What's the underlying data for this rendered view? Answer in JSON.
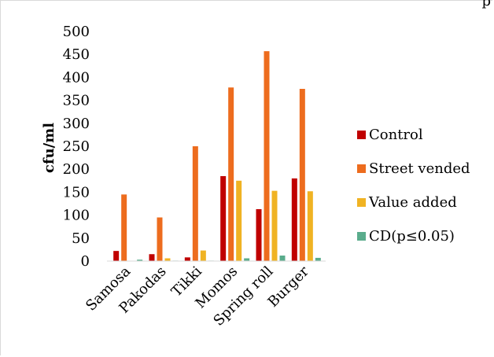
{
  "header_fragment": "p",
  "chart_data": {
    "type": "bar",
    "title": "",
    "xlabel": "",
    "ylabel": "cfu/ml",
    "ylim": [
      0,
      500
    ],
    "yticks": [
      0,
      50,
      100,
      150,
      200,
      250,
      300,
      350,
      400,
      450,
      500
    ],
    "grid": false,
    "legend_position": "right",
    "categories": [
      "Samosa",
      "Pakodas",
      "Tikki",
      "Momos",
      "Spring roll",
      "Burger"
    ],
    "series": [
      {
        "name": "Control",
        "color": "#c00000",
        "values": [
          22,
          15,
          8,
          185,
          113,
          180
        ]
      },
      {
        "name": "Street vended",
        "color": "#ed6c1e",
        "values": [
          145,
          95,
          250,
          378,
          457,
          375
        ]
      },
      {
        "name": "Value added",
        "color": "#f0b323",
        "values": [
          0,
          6,
          23,
          175,
          153,
          152
        ]
      },
      {
        "name": "CD(p≤0.05)",
        "color": "#5aac8c",
        "values": [
          3,
          1,
          1,
          6,
          12,
          7
        ]
      }
    ]
  }
}
